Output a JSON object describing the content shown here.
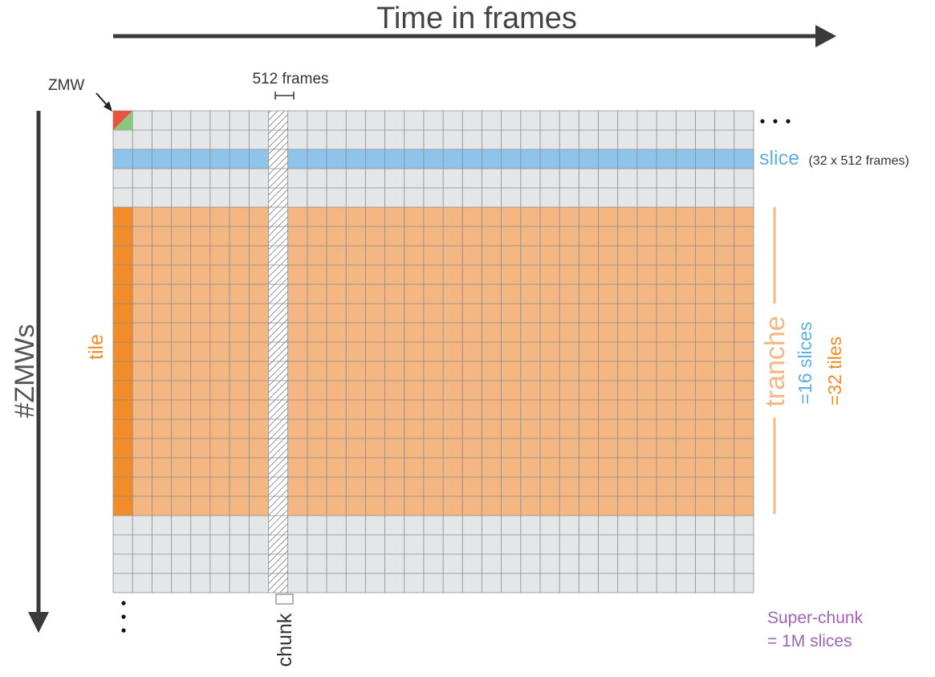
{
  "header": {
    "time_axis_label": "Time in frames"
  },
  "axes": {
    "zmw_axis_label": "#ZMWs"
  },
  "labels": {
    "zmw": "ZMW",
    "chunk_width": "512 frames",
    "slice": "slice",
    "slice_detail": "(32 x 512 frames)",
    "tile": "tile",
    "tranche": "tranche",
    "tranche_slices": "=16 slices",
    "tranche_tiles": "=32 tiles",
    "chunk": "chunk",
    "superchunk_line1": "Super-chunk",
    "superchunk_line2": "= 1M slices"
  },
  "colors": {
    "grid_fill": "#e5e6e8",
    "grid_line": "#8a8a8a",
    "slice": "#8ec4ea",
    "slice_text": "#5ab0e0",
    "tranche": "#f4b682",
    "tile": "#f28c28",
    "tranche_text": "#f4b682",
    "tile_text": "#f28c28",
    "zmw_red": "#e8553e",
    "zmw_green": "#8cc780",
    "superchunk_text": "#a064b4",
    "arrow": "#3a3a3a"
  },
  "grid": {
    "columns": 33,
    "rows": 25,
    "slice_row": 2,
    "tranche_first_row": 5,
    "tranche_last_row": 20,
    "chunk_column": 8
  }
}
